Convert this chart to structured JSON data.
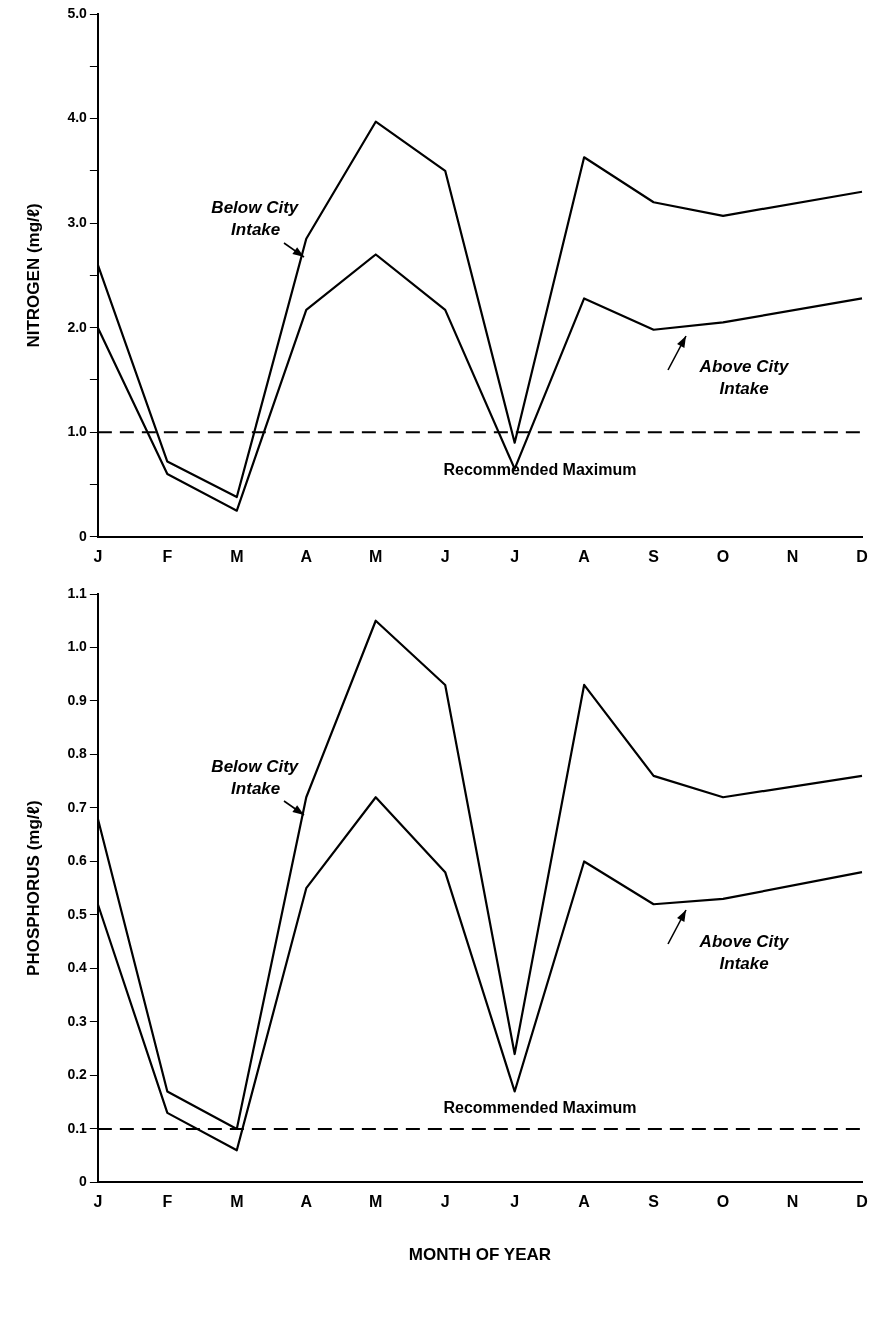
{
  "chart_data": [
    {
      "type": "line",
      "ylabel": "NITROGEN (mg/ℓ)",
      "categories": [
        "J",
        "F",
        "M",
        "A",
        "M",
        "J",
        "J",
        "A",
        "S",
        "O",
        "N",
        "D"
      ],
      "series": [
        {
          "name": "Below City Intake",
          "color": "#000000",
          "values": [
            2.6,
            0.72,
            0.38,
            2.85,
            3.97,
            3.5,
            0.9,
            3.63,
            3.2,
            3.07,
            null,
            3.3
          ]
        },
        {
          "name": "Above City Intake",
          "color": "#000000",
          "values": [
            2.0,
            0.6,
            0.25,
            2.17,
            2.7,
            2.17,
            0.65,
            2.28,
            1.98,
            2.05,
            null,
            2.28
          ]
        }
      ],
      "ylim": [
        0,
        5
      ],
      "yticks": [
        0,
        {
          "value": 0.5,
          "label": null
        },
        {
          "value": 1,
          "label": "1.0"
        },
        {
          "value": 1.5,
          "label": null
        },
        {
          "value": 2,
          "label": "2.0"
        },
        {
          "value": 2.5,
          "label": null
        },
        {
          "value": 3,
          "label": "3.0"
        },
        {
          "value": 3.5,
          "label": null
        },
        {
          "value": 4,
          "label": "4.0"
        },
        {
          "value": 4.5,
          "label": null
        },
        {
          "value": 5,
          "label": "5.0"
        }
      ],
      "ref_lines": [
        {
          "axis": "y",
          "value": 1,
          "label": "Recommended Maximum",
          "color": "#000000",
          "line_style": "dashed"
        }
      ],
      "grid": false,
      "legend": false,
      "marker": "none",
      "line_style": "solid"
    },
    {
      "type": "line",
      "ylabel": "PHOSPHORUS (mg/ℓ)",
      "xlabel": "MONTH OF YEAR",
      "categories": [
        "J",
        "F",
        "M",
        "A",
        "M",
        "J",
        "J",
        "A",
        "S",
        "O",
        "N",
        "D"
      ],
      "series": [
        {
          "name": "Below City Intake",
          "color": "#000000",
          "values": [
            0.68,
            0.17,
            0.1,
            0.72,
            1.05,
            0.93,
            0.24,
            0.93,
            0.76,
            0.72,
            null,
            0.76
          ]
        },
        {
          "name": "Above City Intake",
          "color": "#000000",
          "values": [
            0.52,
            0.13,
            0.06,
            0.55,
            0.72,
            0.58,
            0.17,
            0.6,
            0.52,
            0.53,
            null,
            0.58
          ]
        }
      ],
      "ylim": [
        0,
        1.1
      ],
      "yticks": [
        0,
        0.1,
        0.2,
        0.3,
        0.4,
        0.5,
        0.6,
        0.7,
        0.8,
        0.9,
        {
          "value": 1,
          "label": "1.0"
        },
        1.1
      ],
      "ref_lines": [
        {
          "axis": "y",
          "value": 0.1,
          "label": "Recommended Maximum",
          "color": "#000000",
          "line_style": "dashed"
        }
      ],
      "grid": false,
      "legend": false,
      "marker": "none",
      "line_style": "solid"
    }
  ]
}
